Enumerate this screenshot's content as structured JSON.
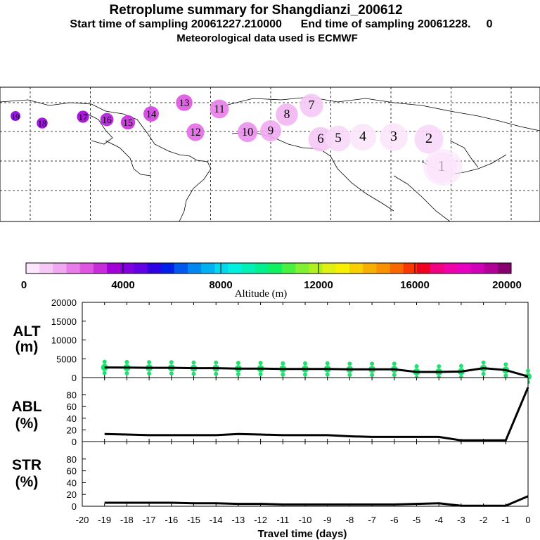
{
  "header": {
    "title": "Retroplume summary for Shangdianzi_200612",
    "line2": "Start time of sampling 20061227.210000      End time of sampling 20061228.     0",
    "line3": "Meteorological data used is ECMWF"
  },
  "colorbar": {
    "tick_labels": [
      "0",
      "4000",
      "8000",
      "12000",
      "16000",
      "20000"
    ],
    "label": "Altitude (m)",
    "colors": [
      "#fbe6fb",
      "#f5c8f6",
      "#efa8f1",
      "#e87de9",
      "#de55e2",
      "#c62cd9",
      "#a400d8",
      "#8200e0",
      "#6400e4",
      "#2e00e2",
      "#0020e8",
      "#0058ec",
      "#0088f0",
      "#00b0f0",
      "#00d8f0",
      "#00f0e0",
      "#00f0b8",
      "#00f090",
      "#10f060",
      "#48f040",
      "#80f030",
      "#b0f020",
      "#e0f010",
      "#f8f000",
      "#f8d000",
      "#f8b000",
      "#f89000",
      "#f86800",
      "#f83800",
      "#f00020",
      "#f00080",
      "#f000a8",
      "#e800c0",
      "#d000b8",
      "#b00098",
      "#880070"
    ]
  },
  "map": {
    "labels": [
      "19",
      "18",
      "17",
      "16",
      "15",
      "14",
      "13",
      "12",
      "11",
      "10",
      "9",
      "8",
      "7",
      "6",
      "5",
      "4",
      "3",
      "2",
      "1"
    ]
  },
  "chart_data": [
    {
      "type": "line",
      "name": "ALT",
      "title": "ALT",
      "ylabel": "(m)",
      "ylim": [
        0,
        20000
      ],
      "yticks": [
        "20000",
        "15000",
        "10000",
        "5000",
        "0"
      ],
      "x": [
        -19,
        -18,
        -17,
        -16,
        -15,
        -14,
        -13,
        -12,
        -11,
        -10,
        -9,
        -8,
        -7,
        -6,
        -5,
        -4,
        -3,
        -2,
        -1,
        0
      ],
      "values": [
        2700,
        2650,
        2600,
        2600,
        2500,
        2500,
        2400,
        2400,
        2300,
        2300,
        2300,
        2200,
        2200,
        2200,
        1500,
        1500,
        1600,
        2500,
        2000,
        300
      ],
      "scatter_color": "#22e070"
    },
    {
      "type": "line",
      "name": "ABL",
      "title": "ABL",
      "ylabel": "(%)",
      "ylim": [
        0,
        100
      ],
      "yticks": [
        "80",
        "60",
        "40",
        "20",
        "0"
      ],
      "x": [
        -19,
        -18,
        -17,
        -16,
        -15,
        -14,
        -13,
        -12,
        -11,
        -10,
        -9,
        -8,
        -7,
        -6,
        -5,
        -4,
        -3,
        -2,
        -1,
        0
      ],
      "values": [
        13,
        12,
        11,
        11,
        11,
        11,
        13,
        12,
        11,
        11,
        11,
        9,
        8,
        8,
        8,
        8,
        2,
        2,
        2,
        93
      ]
    },
    {
      "type": "line",
      "name": "STR",
      "title": "STR",
      "ylabel": "(%)",
      "ylim": [
        0,
        100
      ],
      "yticks": [
        "80",
        "60",
        "40",
        "20",
        "0"
      ],
      "x": [
        -19,
        -18,
        -17,
        -16,
        -15,
        -14,
        -13,
        -12,
        -11,
        -10,
        -9,
        -8,
        -7,
        -6,
        -5,
        -4,
        -3,
        -2,
        -1,
        0
      ],
      "values": [
        6,
        6,
        6,
        6,
        5,
        5,
        4,
        4,
        3,
        3,
        3,
        3,
        3,
        3,
        4,
        5,
        1,
        1,
        1,
        17
      ]
    }
  ],
  "xaxis": {
    "label": "Travel time (days)",
    "ticks": [
      "-20",
      "-19",
      "-18",
      "-17",
      "-16",
      "-15",
      "-14",
      "-13",
      "-12",
      "-11",
      "-10",
      "-9",
      "-8",
      "-7",
      "-6",
      "-5",
      "-4",
      "-3",
      "-2",
      "-1",
      "0"
    ]
  }
}
